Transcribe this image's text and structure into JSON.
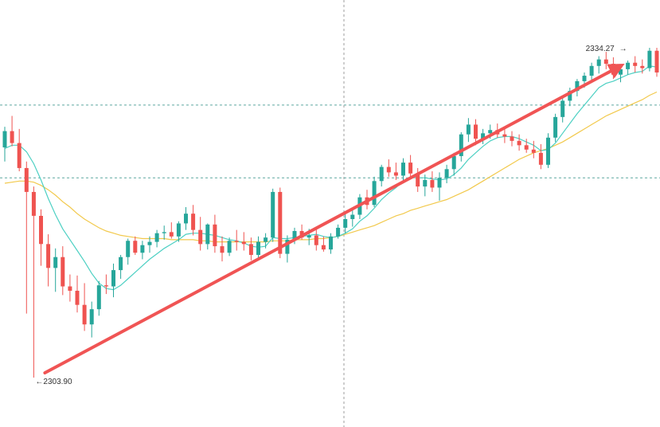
{
  "chart_data": {
    "type": "candlestick",
    "instrument": "",
    "title": "",
    "xlabel": "",
    "ylabel": "",
    "y_range": [
      2299.5,
      2337.5
    ],
    "grid": false,
    "legend": "none",
    "colors": {
      "up": "#26a69a",
      "down": "#ef5350",
      "ma_fast": "#4dd0c3",
      "ma_slow": "#f2c94c",
      "trend_arrow": "#f05454",
      "crosshair": "#9e9e9e",
      "hline": "#5fa8a0"
    },
    "candles": [
      [
        2325.1,
        2327.0,
        2323.8,
        2326.6
      ],
      [
        2326.6,
        2328.0,
        2325.2,
        2325.5
      ],
      [
        2325.5,
        2326.8,
        2322.9,
        2323.2
      ],
      [
        2323.2,
        2323.8,
        2309.8,
        2321.0
      ],
      [
        2321.0,
        2321.5,
        2303.9,
        2318.8
      ],
      [
        2318.8,
        2319.4,
        2314.2,
        2316.2
      ],
      [
        2316.2,
        2317.1,
        2312.3,
        2314.0
      ],
      [
        2314.0,
        2315.8,
        2311.8,
        2315.0
      ],
      [
        2315.0,
        2316.0,
        2311.5,
        2312.3
      ],
      [
        2312.3,
        2313.4,
        2310.9,
        2311.9
      ],
      [
        2311.9,
        2313.3,
        2309.9,
        2310.6
      ],
      [
        2310.6,
        2312.6,
        2308.2,
        2308.8
      ],
      [
        2308.8,
        2310.9,
        2307.6,
        2310.2
      ],
      [
        2310.2,
        2312.8,
        2309.6,
        2312.4
      ],
      [
        2312.4,
        2313.4,
        2311.6,
        2312.3
      ],
      [
        2312.3,
        2314.4,
        2311.3,
        2313.8
      ],
      [
        2313.8,
        2315.2,
        2313.0,
        2315.0
      ],
      [
        2315.0,
        2316.7,
        2314.3,
        2316.5
      ],
      [
        2316.5,
        2316.9,
        2315.2,
        2315.4
      ],
      [
        2315.4,
        2316.5,
        2314.8,
        2316.1
      ],
      [
        2316.1,
        2316.9,
        2315.4,
        2316.4
      ],
      [
        2316.4,
        2317.5,
        2315.9,
        2317.2
      ],
      [
        2317.2,
        2317.9,
        2316.6,
        2317.3
      ],
      [
        2317.3,
        2318.2,
        2316.7,
        2316.9
      ],
      [
        2316.9,
        2318.3,
        2316.4,
        2318.1
      ],
      [
        2318.1,
        2319.6,
        2317.5,
        2319.0
      ],
      [
        2319.0,
        2319.8,
        2317.0,
        2317.5
      ],
      [
        2317.5,
        2318.7,
        2315.6,
        2316.2
      ],
      [
        2316.2,
        2318.1,
        2315.7,
        2318.0
      ],
      [
        2318.0,
        2318.9,
        2315.4,
        2316.0
      ],
      [
        2316.0,
        2316.9,
        2314.6,
        2315.4
      ],
      [
        2315.4,
        2316.8,
        2315.1,
        2316.5
      ],
      [
        2316.5,
        2317.5,
        2315.6,
        2316.4
      ],
      [
        2316.4,
        2317.3,
        2315.6,
        2316.2
      ],
      [
        2316.2,
        2316.8,
        2314.7,
        2315.2
      ],
      [
        2315.2,
        2316.9,
        2314.8,
        2316.4
      ],
      [
        2316.4,
        2317.2,
        2315.8,
        2316.8
      ],
      [
        2316.8,
        2321.3,
        2316.4,
        2321.0
      ],
      [
        2321.0,
        2321.4,
        2314.9,
        2315.3
      ],
      [
        2315.3,
        2317.0,
        2314.5,
        2316.6
      ],
      [
        2316.6,
        2317.7,
        2316.2,
        2317.4
      ],
      [
        2317.4,
        2318.0,
        2316.6,
        2316.8
      ],
      [
        2316.8,
        2317.6,
        2316.1,
        2317.0
      ],
      [
        2317.0,
        2317.8,
        2315.6,
        2316.1
      ],
      [
        2316.1,
        2316.9,
        2315.5,
        2315.7
      ],
      [
        2315.7,
        2317.2,
        2315.3,
        2316.9
      ],
      [
        2316.9,
        2318.0,
        2316.7,
        2317.7
      ],
      [
        2317.7,
        2319.0,
        2317.2,
        2318.5
      ],
      [
        2318.5,
        2319.3,
        2317.8,
        2318.9
      ],
      [
        2318.9,
        2320.8,
        2318.5,
        2320.5
      ],
      [
        2320.5,
        2321.2,
        2319.4,
        2319.8
      ],
      [
        2319.8,
        2322.4,
        2319.6,
        2322.0
      ],
      [
        2322.0,
        2323.5,
        2321.5,
        2323.3
      ],
      [
        2323.3,
        2324.0,
        2322.4,
        2322.8
      ],
      [
        2322.8,
        2323.7,
        2322.1,
        2322.5
      ],
      [
        2322.5,
        2324.1,
        2321.9,
        2323.7
      ],
      [
        2323.7,
        2324.4,
        2322.2,
        2322.7
      ],
      [
        2322.7,
        2323.2,
        2321.0,
        2321.5
      ],
      [
        2321.5,
        2322.6,
        2320.6,
        2322.1
      ],
      [
        2322.1,
        2322.9,
        2321.0,
        2321.4
      ],
      [
        2321.4,
        2322.8,
        2320.2,
        2322.3
      ],
      [
        2322.3,
        2323.5,
        2321.8,
        2323.1
      ],
      [
        2323.1,
        2324.6,
        2322.5,
        2324.3
      ],
      [
        2324.3,
        2326.5,
        2323.8,
        2326.3
      ],
      [
        2326.3,
        2327.8,
        2325.6,
        2327.2
      ],
      [
        2327.2,
        2327.7,
        2325.3,
        2325.9
      ],
      [
        2325.9,
        2326.8,
        2325.4,
        2326.4
      ],
      [
        2326.4,
        2327.2,
        2325.9,
        2326.7
      ],
      [
        2326.7,
        2327.3,
        2326.0,
        2326.3
      ],
      [
        2326.3,
        2327.0,
        2325.5,
        2326.1
      ],
      [
        2326.1,
        2326.6,
        2325.2,
        2325.7
      ],
      [
        2325.7,
        2326.3,
        2324.8,
        2325.3
      ],
      [
        2325.3,
        2325.9,
        2324.6,
        2324.9
      ],
      [
        2324.9,
        2325.7,
        2324.1,
        2324.6
      ],
      [
        2324.6,
        2325.4,
        2323.1,
        2323.5
      ],
      [
        2323.5,
        2326.4,
        2323.2,
        2326.0
      ],
      [
        2326.0,
        2328.2,
        2325.6,
        2327.9
      ],
      [
        2327.9,
        2329.8,
        2327.4,
        2329.4
      ],
      [
        2329.4,
        2330.6,
        2328.9,
        2330.3
      ],
      [
        2330.3,
        2331.4,
        2329.8,
        2331.2
      ],
      [
        2331.2,
        2332.0,
        2330.6,
        2331.7
      ],
      [
        2331.7,
        2332.9,
        2331.3,
        2332.6
      ],
      [
        2332.6,
        2333.5,
        2331.9,
        2333.2
      ],
      [
        2333.2,
        2333.9,
        2332.3,
        2332.8
      ],
      [
        2332.8,
        2333.4,
        2331.4,
        2331.8
      ],
      [
        2331.8,
        2332.6,
        2331.1,
        2332.3
      ],
      [
        2332.3,
        2333.1,
        2331.8,
        2332.9
      ],
      [
        2332.9,
        2333.5,
        2332.0,
        2332.6
      ],
      [
        2332.6,
        2333.2,
        2331.9,
        2332.4
      ],
      [
        2332.4,
        2334.27,
        2332.1,
        2334.0
      ],
      [
        2334.0,
        2334.27,
        2331.6,
        2332.0
      ]
    ],
    "ma_fast": [
      2325.0,
      2325.3,
      2325.3,
      2324.7,
      2323.6,
      2322.1,
      2320.4,
      2318.9,
      2317.6,
      2316.6,
      2315.6,
      2314.6,
      2313.5,
      2312.6,
      2312.1,
      2312.0,
      2312.4,
      2313.0,
      2313.6,
      2314.2,
      2314.8,
      2315.3,
      2315.8,
      2316.2,
      2316.6,
      2317.1,
      2317.2,
      2317.2,
      2317.1,
      2317.0,
      2316.8,
      2316.6,
      2316.5,
      2316.3,
      2316.0,
      2315.9,
      2316.0,
      2316.8,
      2316.7,
      2316.7,
      2316.8,
      2316.9,
      2317.0,
      2317.1,
      2316.9,
      2316.8,
      2316.9,
      2317.2,
      2317.6,
      2318.3,
      2318.8,
      2319.5,
      2320.3,
      2320.9,
      2321.4,
      2322.0,
      2322.3,
      2322.3,
      2322.3,
      2322.2,
      2322.1,
      2322.2,
      2322.6,
      2323.2,
      2324.0,
      2324.6,
      2325.2,
      2325.7,
      2326.0,
      2326.1,
      2326.1,
      2325.9,
      2325.6,
      2325.3,
      2324.8,
      2324.9,
      2325.5,
      2326.4,
      2327.3,
      2328.2,
      2329.0,
      2329.8,
      2330.6,
      2331.0,
      2331.2,
      2331.5,
      2331.8,
      2332.0,
      2332.1,
      2332.6,
      2332.5
    ],
    "ma_slow": [
      2321.8,
      2321.9,
      2322.0,
      2322.0,
      2321.9,
      2321.6,
      2321.2,
      2320.7,
      2320.1,
      2319.6,
      2319.0,
      2318.5,
      2318.1,
      2317.7,
      2317.4,
      2317.2,
      2317.0,
      2316.9,
      2316.8,
      2316.7,
      2316.7,
      2316.7,
      2316.7,
      2316.6,
      2316.6,
      2316.6,
      2316.6,
      2316.5,
      2316.5,
      2316.4,
      2316.4,
      2316.4,
      2316.4,
      2316.4,
      2316.4,
      2316.4,
      2316.4,
      2316.5,
      2316.5,
      2316.5,
      2316.6,
      2316.6,
      2316.6,
      2316.7,
      2316.7,
      2316.8,
      2316.9,
      2317.1,
      2317.3,
      2317.5,
      2317.7,
      2317.9,
      2318.2,
      2318.5,
      2318.8,
      2319.0,
      2319.3,
      2319.5,
      2319.7,
      2319.9,
      2320.1,
      2320.3,
      2320.6,
      2320.9,
      2321.2,
      2321.6,
      2322.0,
      2322.4,
      2322.8,
      2323.2,
      2323.6,
      2324.0,
      2324.3,
      2324.6,
      2324.8,
      2325.0,
      2325.3,
      2325.6,
      2326.0,
      2326.4,
      2326.8,
      2327.2,
      2327.6,
      2328.0,
      2328.3,
      2328.6,
      2328.9,
      2329.2,
      2329.5,
      2329.9,
      2330.2
    ],
    "horizontal_lines": [
      2329.0,
      2322.3
    ],
    "annotations": {
      "high_label": "2334.27",
      "low_label": "2303.90",
      "high_arrow": "→",
      "low_arrow": "←"
    },
    "trend_arrow": {
      "from": [
        4,
        2303.9
      ],
      "to": [
        86,
        2334.27
      ]
    }
  }
}
